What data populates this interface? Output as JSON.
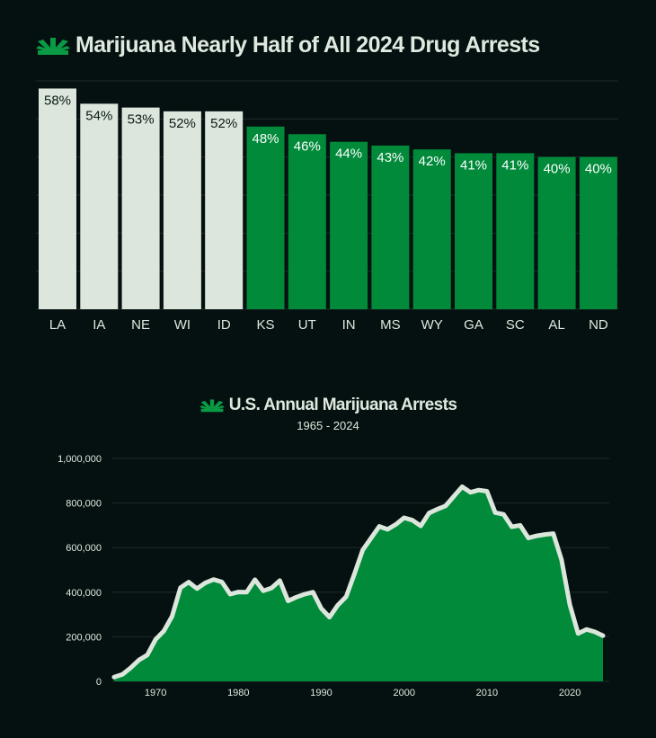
{
  "colors": {
    "background": "#041110",
    "light": "#dce6dc",
    "green": "#008a3a",
    "grid": "#1f2a29"
  },
  "chart_data": [
    {
      "type": "bar",
      "title": "Marijuana Nearly Half of All 2024 Drug Arrests",
      "categories": [
        "LA",
        "IA",
        "NE",
        "WI",
        "ID",
        "KS",
        "UT",
        "IN",
        "MS",
        "WY",
        "GA",
        "SC",
        "AL",
        "ND"
      ],
      "values": [
        58,
        54,
        53,
        52,
        52,
        48,
        46,
        44,
        43,
        42,
        41,
        41,
        40,
        40
      ],
      "data_labels": [
        "58%",
        "54%",
        "53%",
        "52%",
        "52%",
        "48%",
        "46%",
        "44%",
        "43%",
        "42%",
        "41%",
        "41%",
        "40%",
        "40%"
      ],
      "highlighted_count": 5,
      "ylim": [
        0,
        60
      ],
      "grid": true
    },
    {
      "type": "area",
      "title": "U.S. Annual Marijuana Arrests",
      "subtitle": "1965 - 2024",
      "x": [
        1965,
        1966,
        1967,
        1968,
        1969,
        1970,
        1971,
        1972,
        1973,
        1974,
        1975,
        1976,
        1977,
        1978,
        1979,
        1980,
        1981,
        1982,
        1983,
        1984,
        1985,
        1986,
        1987,
        1988,
        1989,
        1990,
        1991,
        1992,
        1993,
        1994,
        1995,
        1996,
        1997,
        1998,
        1999,
        2000,
        2001,
        2002,
        2003,
        2004,
        2005,
        2006,
        2007,
        2008,
        2009,
        2010,
        2011,
        2012,
        2013,
        2014,
        2015,
        2016,
        2017,
        2018,
        2019,
        2020,
        2021,
        2022,
        2023,
        2024
      ],
      "y": [
        18815,
        31000,
        61000,
        96000,
        118000,
        188000,
        226000,
        292000,
        420000,
        445000,
        416000,
        442000,
        457000,
        446000,
        391000,
        401000,
        400000,
        456000,
        406000,
        419000,
        452000,
        361000,
        378000,
        391000,
        400000,
        327000,
        288000,
        342000,
        380000,
        482000,
        589000,
        642000,
        695000,
        682000,
        704000,
        734000,
        723000,
        697000,
        755000,
        772000,
        787000,
        830000,
        873000,
        848000,
        858000,
        853000,
        757000,
        749000,
        693000,
        700000,
        643000,
        653000,
        659000,
        663000,
        545000,
        344000,
        215000,
        233000,
        222000,
        205000
      ],
      "xticks": [
        1970,
        1980,
        1990,
        2000,
        2010,
        2020
      ],
      "yticks": [
        0,
        200000,
        400000,
        600000,
        800000,
        1000000
      ],
      "ytick_labels": [
        "0",
        "200,000",
        "400,000",
        "600,000",
        "800,000",
        "1,000,000"
      ],
      "xlim": [
        1965,
        2024
      ],
      "ylim": [
        0,
        1000000
      ],
      "grid": true
    }
  ]
}
